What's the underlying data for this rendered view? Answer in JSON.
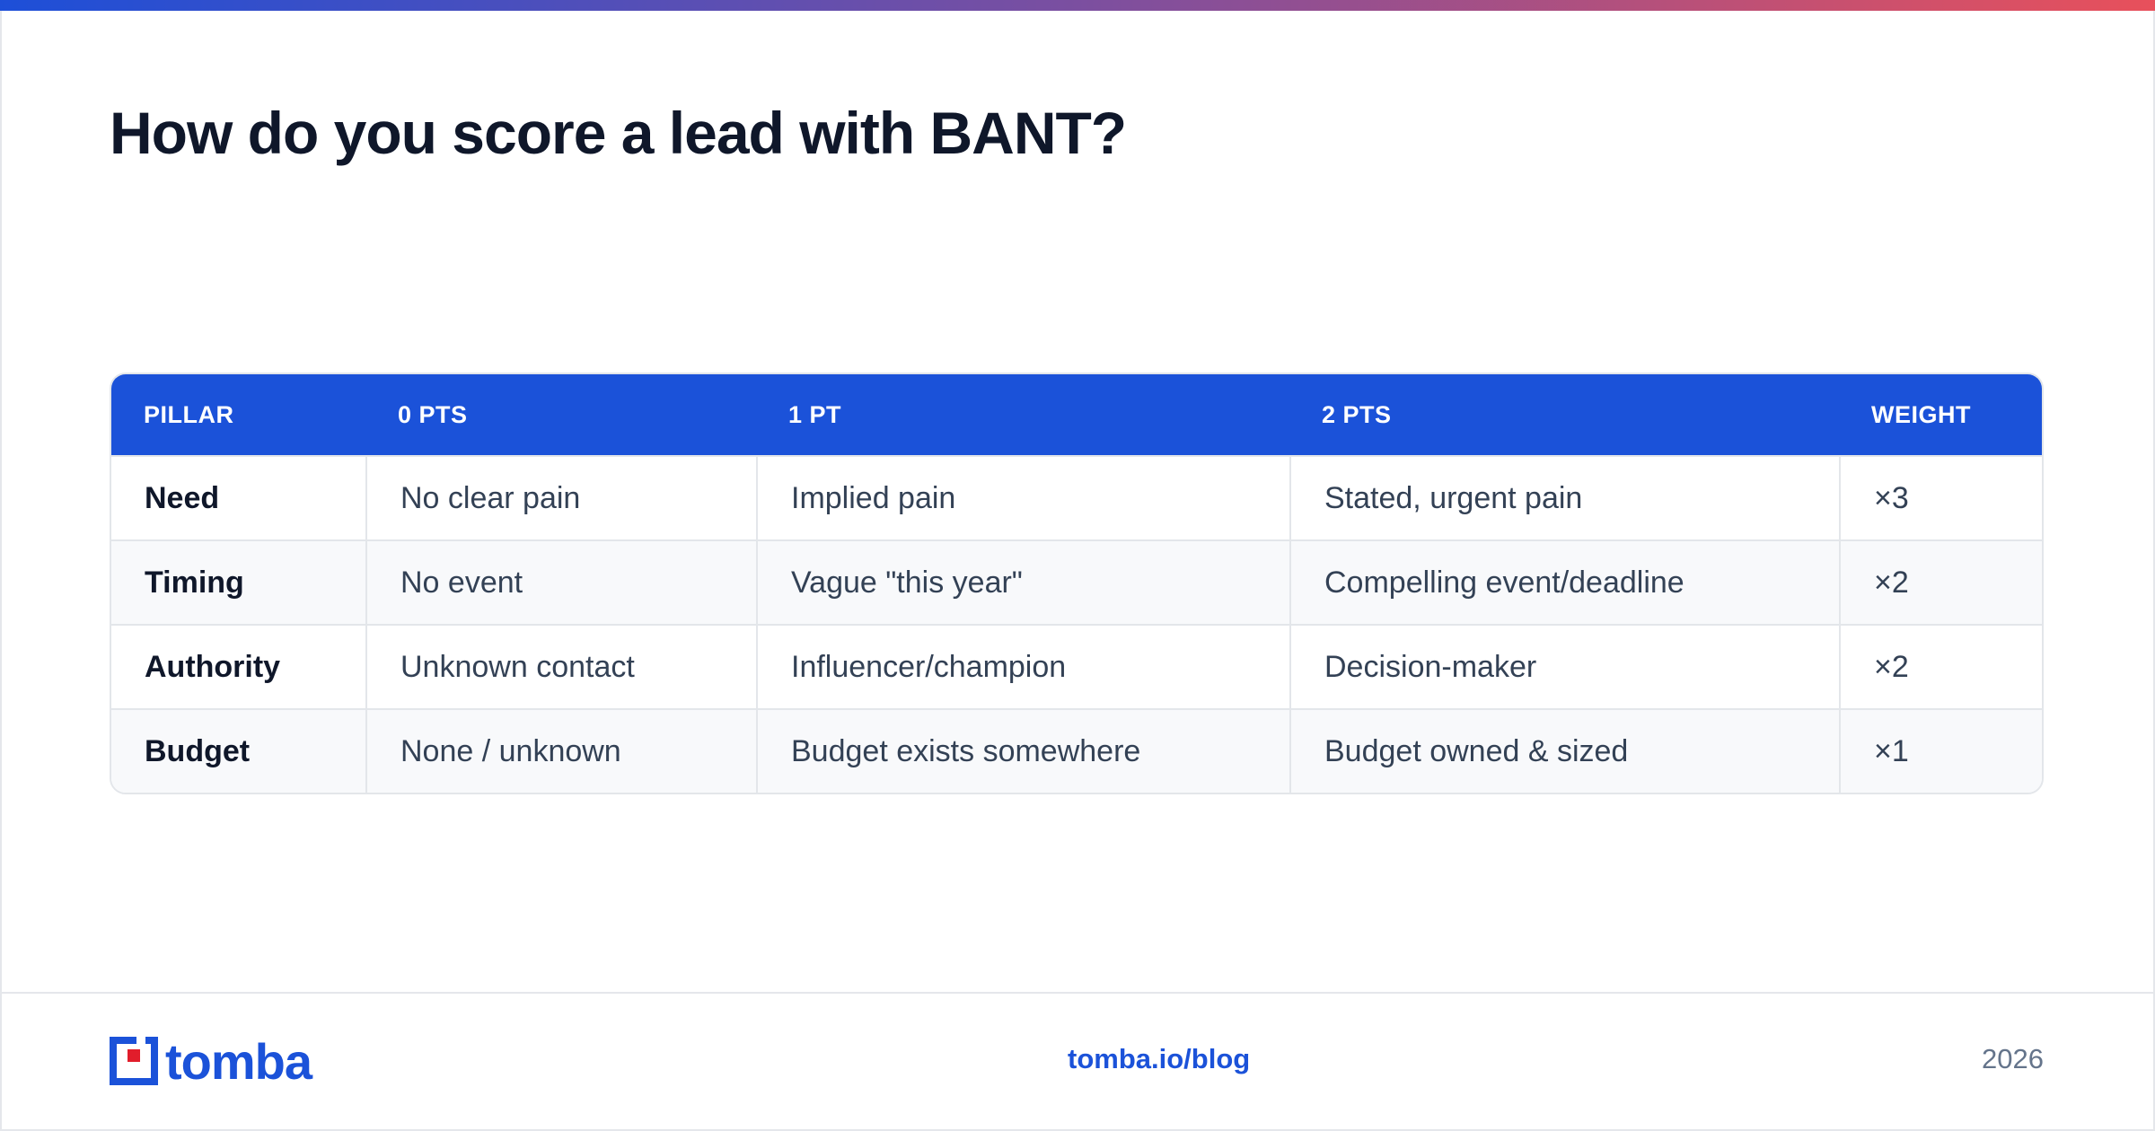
{
  "header": {
    "title": "How do you score a lead with BANT?"
  },
  "table": {
    "columns": [
      "PILLAR",
      "0 PTS",
      "1 PT",
      "2 PTS",
      "WEIGHT"
    ],
    "rows": [
      [
        "Need",
        "No clear pain",
        "Implied pain",
        "Stated, urgent pain",
        "×3"
      ],
      [
        "Timing",
        "No event",
        "Vague \"this year\"",
        "Compelling event/deadline",
        "×2"
      ],
      [
        "Authority",
        "Unknown contact",
        "Influencer/champion",
        "Decision-maker",
        "×2"
      ],
      [
        "Budget",
        "None / unknown",
        "Budget exists somewhere",
        "Budget owned & sized",
        "×1"
      ]
    ]
  },
  "footer": {
    "logo": "tomba",
    "link": "tomba.io/blog",
    "year": "2026"
  }
}
